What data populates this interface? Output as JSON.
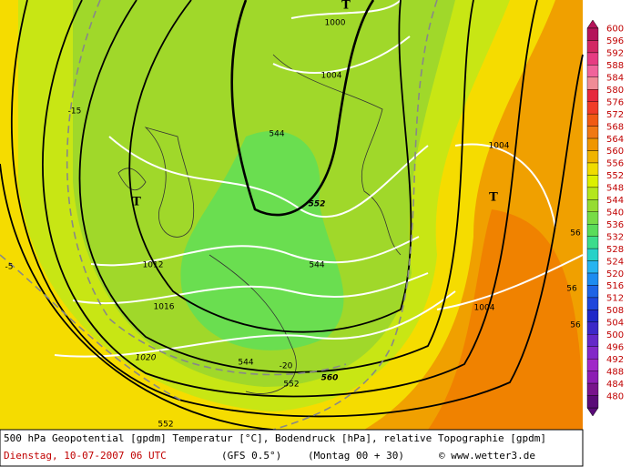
{
  "colorbar": {
    "levels": [
      600,
      596,
      592,
      588,
      584,
      580,
      576,
      572,
      568,
      564,
      560,
      556,
      552,
      548,
      544,
      540,
      536,
      532,
      528,
      524,
      520,
      516,
      512,
      508,
      504,
      500,
      496,
      492,
      488,
      484,
      480
    ],
    "colors": [
      "#b4145a",
      "#d22864",
      "#e63c82",
      "#f0649b",
      "#f08c96",
      "#e6283c",
      "#f03c28",
      "#f05a14",
      "#f07814",
      "#f09600",
      "#f0b400",
      "#f0dc00",
      "#dcf000",
      "#b4e61e",
      "#96dc32",
      "#78dc46",
      "#5adc5a",
      "#3cdc8c",
      "#28d2c8",
      "#28b4f0",
      "#1e8cf0",
      "#1e64e6",
      "#1e46dc",
      "#1e28c8",
      "#3c28c8",
      "#6428c8",
      "#8228c8",
      "#a028c8",
      "#8c1eb4",
      "#78148c",
      "#5a0a78"
    ]
  },
  "map": {
    "highs_lows": [
      "T",
      "T",
      "T"
    ],
    "contour_labels": [
      1000,
      1004,
      544,
      552,
      -15,
      -5,
      1012,
      1016,
      1020,
      1004,
      1004,
      544,
      -20,
      560,
      552,
      552,
      56,
      56,
      56,
      544
    ]
  },
  "footer": {
    "description": "500 hPa Geopotential [gpdm] Temperatur [°C], Bodendruck [hPa], relative Topographie [gpdm]",
    "date": "Dienstag, 10-07-2007  06 UTC",
    "model": "(GFS 0.5°)",
    "run": "(Montag 00 + 30)",
    "copyright": "© www.wetter3.de"
  }
}
